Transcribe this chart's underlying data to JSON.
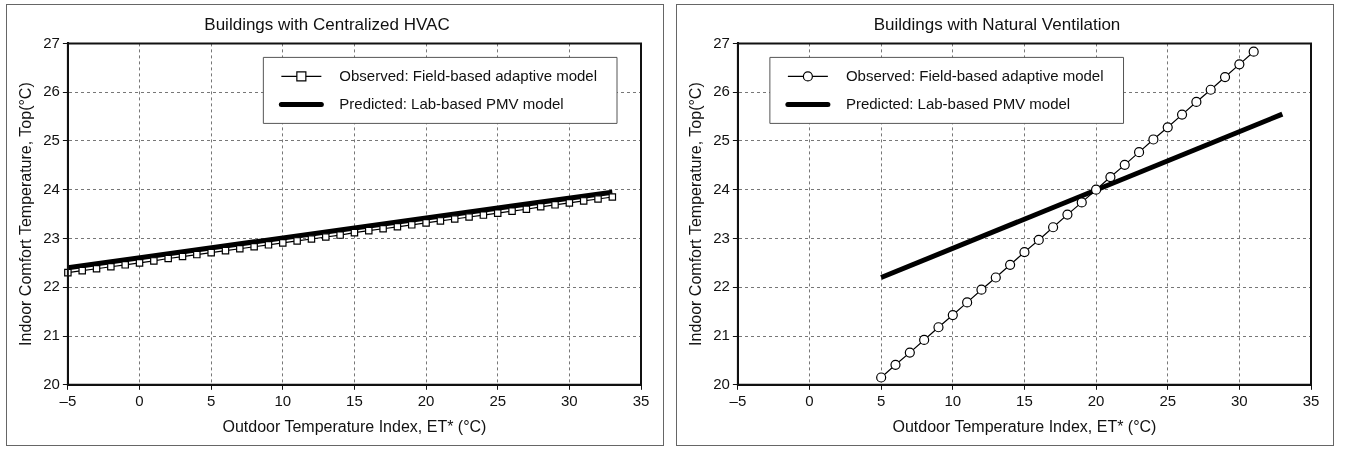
{
  "chart_data": [
    {
      "type": "line",
      "title": "Buildings with Centralized HVAC",
      "xlabel": "Outdoor Temperature Index, ET* (°C)",
      "ylabel": "Indoor Comfort Temperature, Top(°C)",
      "xlim": [
        -5,
        35
      ],
      "xticks": [
        {
          "value": -5,
          "label": "–5"
        },
        0,
        5,
        10,
        15,
        20,
        25,
        30,
        35
      ],
      "ylim": [
        20,
        27
      ],
      "yticks": [
        20,
        21,
        22,
        23,
        24,
        25,
        26,
        27
      ],
      "grid": true,
      "legend": "top right",
      "series": [
        {
          "name": "Observed: Field-based adaptive model",
          "color": "#000000",
          "marker": "square",
          "x": [
            -5,
            -4,
            -3,
            -2,
            -1,
            0,
            1,
            2,
            3,
            4,
            5,
            6,
            7,
            8,
            9,
            10,
            11,
            12,
            13,
            14,
            15,
            16,
            17,
            18,
            19,
            20,
            21,
            22,
            23,
            24,
            25,
            26,
            27,
            28,
            29,
            30,
            31,
            32,
            33
          ],
          "values": [
            22.3,
            22.34,
            22.38,
            22.42,
            22.46,
            22.5,
            22.54,
            22.59,
            22.63,
            22.67,
            22.71,
            22.75,
            22.79,
            22.83,
            22.87,
            22.91,
            22.95,
            22.99,
            23.03,
            23.07,
            23.12,
            23.16,
            23.2,
            23.24,
            23.28,
            23.32,
            23.36,
            23.4,
            23.44,
            23.48,
            23.52,
            23.56,
            23.6,
            23.65,
            23.69,
            23.73,
            23.77,
            23.81,
            23.85
          ]
        },
        {
          "name": "Predicted: Lab-based PMV model",
          "color": "#000000",
          "marker": "none",
          "x": [
            -5,
            33
          ],
          "values": [
            22.4,
            23.95
          ]
        }
      ]
    },
    {
      "type": "line",
      "title": "Buildings with Natural Ventilation",
      "xlabel": "Outdoor Temperature Index, ET* (°C)",
      "ylabel": "Indoor Comfort Temperature, Top(°C)",
      "xlim": [
        -5,
        35
      ],
      "xticks": [
        {
          "value": -5,
          "label": "–5"
        },
        0,
        5,
        10,
        15,
        20,
        25,
        30,
        35
      ],
      "ylim": [
        20,
        27
      ],
      "yticks": [
        20,
        21,
        22,
        23,
        24,
        25,
        26,
        27
      ],
      "grid": true,
      "legend": "top left",
      "series": [
        {
          "name": "Observed: Field-based adaptive model",
          "color": "#000000",
          "marker": "circle",
          "x": [
            5,
            6,
            7,
            8,
            9,
            10,
            11,
            12,
            13,
            14,
            15,
            16,
            17,
            18,
            19,
            20,
            21,
            22,
            23,
            24,
            25,
            26,
            27,
            28,
            29,
            30,
            31
          ],
          "values": [
            20.15,
            20.41,
            20.66,
            20.92,
            21.18,
            21.43,
            21.69,
            21.95,
            22.2,
            22.46,
            22.72,
            22.97,
            23.23,
            23.49,
            23.74,
            24.0,
            24.26,
            24.51,
            24.77,
            25.03,
            25.28,
            25.54,
            25.8,
            26.05,
            26.31,
            26.57,
            26.83
          ]
        },
        {
          "name": "Predicted: Lab-based PMV model",
          "color": "#000000",
          "marker": "none",
          "x": [
            5,
            33
          ],
          "values": [
            22.2,
            25.55
          ]
        }
      ]
    }
  ]
}
